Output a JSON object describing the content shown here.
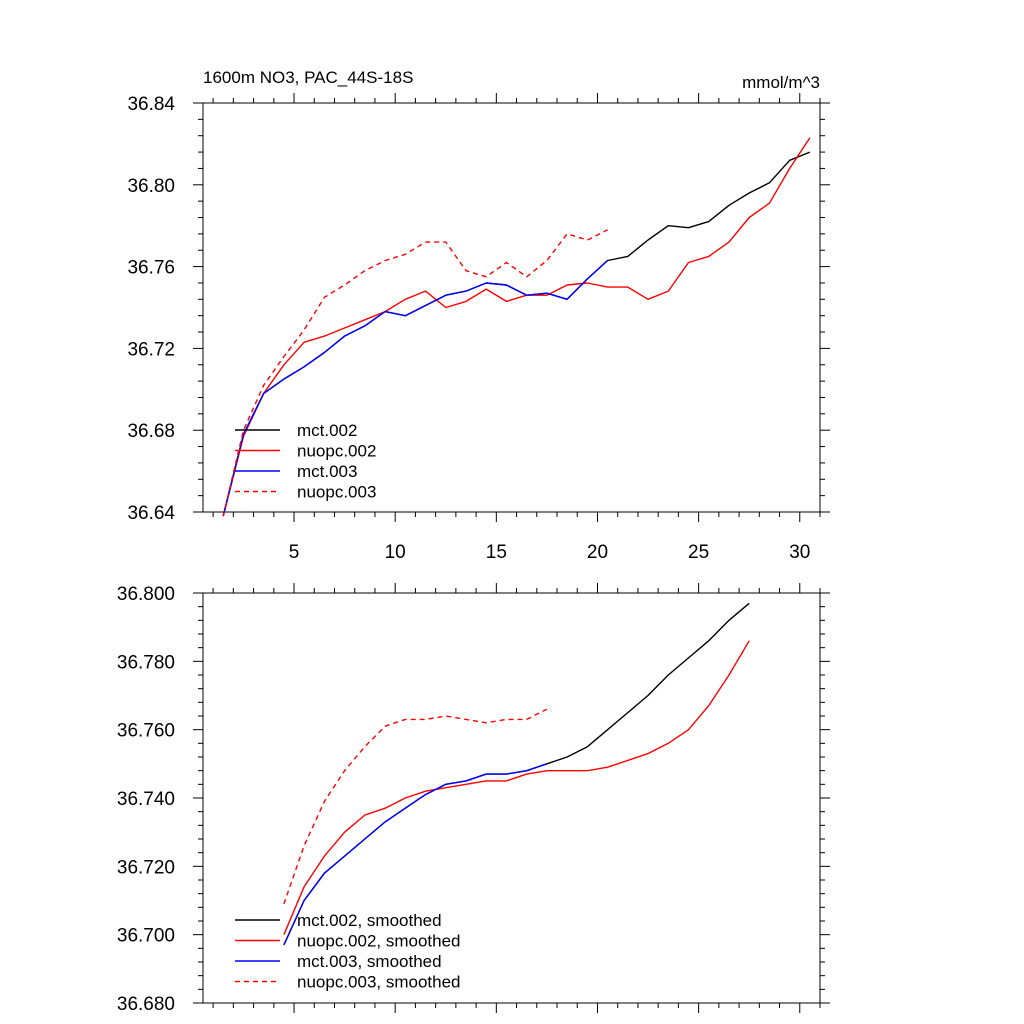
{
  "header": {
    "title": "1600m NO3, PAC_44S-18S",
    "units": "mmol/m^3"
  },
  "chart_data": [
    {
      "type": "line",
      "xlim": [
        0.5,
        31.0
      ],
      "ylim": [
        36.64,
        36.84
      ],
      "xticks": [
        5,
        10,
        15,
        20,
        25,
        30
      ],
      "xtick_labels": [
        "5",
        "10",
        "15",
        "20",
        "25",
        "30"
      ],
      "yticks": [
        36.64,
        36.68,
        36.72,
        36.76,
        36.8,
        36.84
      ],
      "ytick_labels": [
        "36.64",
        "36.68",
        "36.72",
        "36.76",
        "36.80",
        "36.84"
      ],
      "grid": false,
      "legend_position": "bottom-left",
      "series": [
        {
          "name": "mct.002",
          "color": "#000000",
          "dash": "solid",
          "x": [
            1.5,
            2.5,
            3.5,
            4.5,
            5.5,
            6.5,
            7.5,
            8.5,
            9.5,
            10.5,
            11.5,
            12.5,
            13.5,
            14.5,
            15.5,
            16.5,
            17.5,
            18.5,
            19.5,
            20.5,
            21.5,
            22.5,
            23.5,
            24.5,
            25.5,
            26.5,
            27.5,
            28.5,
            29.5,
            30.5
          ],
          "values": [
            36.638,
            36.678,
            36.698,
            36.705,
            36.711,
            36.718,
            36.726,
            36.731,
            36.738,
            36.736,
            36.741,
            36.746,
            36.748,
            36.752,
            36.751,
            36.746,
            36.747,
            36.744,
            36.754,
            36.763,
            36.765,
            36.773,
            36.78,
            36.779,
            36.782,
            36.79,
            36.796,
            36.801,
            36.812,
            36.816
          ]
        },
        {
          "name": "nuopc.002",
          "color": "#ff0000",
          "dash": "solid",
          "x": [
            1.5,
            2.5,
            3.5,
            4.5,
            5.5,
            6.5,
            7.5,
            8.5,
            9.5,
            10.5,
            11.5,
            12.5,
            13.5,
            14.5,
            15.5,
            16.5,
            17.5,
            18.5,
            19.5,
            20.5,
            21.5,
            22.5,
            23.5,
            24.5,
            25.5,
            26.5,
            27.5,
            28.5,
            29.5,
            30.5
          ],
          "values": [
            36.638,
            36.677,
            36.698,
            36.712,
            36.723,
            36.726,
            36.73,
            36.734,
            36.738,
            36.744,
            36.748,
            36.74,
            36.743,
            36.749,
            36.743,
            36.746,
            36.746,
            36.751,
            36.752,
            36.75,
            36.75,
            36.744,
            36.748,
            36.762,
            36.765,
            36.772,
            36.784,
            36.791,
            36.808,
            36.823
          ]
        },
        {
          "name": "mct.003",
          "color": "#0000ff",
          "dash": "solid",
          "x": [
            1.5,
            2.5,
            3.5,
            4.5,
            5.5,
            6.5,
            7.5,
            8.5,
            9.5,
            10.5,
            11.5,
            12.5,
            13.5,
            14.5,
            15.5,
            16.5,
            17.5,
            18.5,
            19.5,
            20.5
          ],
          "values": [
            36.638,
            36.678,
            36.698,
            36.705,
            36.711,
            36.718,
            36.726,
            36.731,
            36.738,
            36.736,
            36.741,
            36.746,
            36.748,
            36.752,
            36.751,
            36.746,
            36.747,
            36.744,
            36.754,
            36.763
          ]
        },
        {
          "name": "nuopc.003",
          "color": "#ff0000",
          "dash": "dashed",
          "x": [
            1.5,
            2.5,
            3.5,
            4.5,
            5.5,
            6.5,
            7.5,
            8.5,
            9.5,
            10.5,
            11.5,
            12.5,
            13.5,
            14.5,
            15.5,
            16.5,
            17.5,
            18.5,
            19.5,
            20.5
          ],
          "values": [
            36.638,
            36.68,
            36.702,
            36.716,
            36.729,
            36.745,
            36.751,
            36.758,
            36.763,
            36.766,
            36.772,
            36.772,
            36.758,
            36.755,
            36.762,
            36.755,
            36.763,
            36.776,
            36.773,
            36.778
          ]
        }
      ]
    },
    {
      "type": "line",
      "xlim": [
        0.5,
        31.0
      ],
      "ylim": [
        36.68,
        36.8
      ],
      "xticks": [
        5,
        10,
        15,
        20,
        25,
        30
      ],
      "xtick_labels": [],
      "yticks": [
        36.68,
        36.7,
        36.72,
        36.74,
        36.76,
        36.78,
        36.8
      ],
      "ytick_labels": [
        "36.680",
        "36.700",
        "36.720",
        "36.740",
        "36.760",
        "36.780",
        "36.800"
      ],
      "grid": false,
      "legend_position": "bottom-left",
      "series": [
        {
          "name": "mct.002, smoothed",
          "color": "#000000",
          "dash": "solid",
          "x": [
            4.5,
            5.5,
            6.5,
            7.5,
            8.5,
            9.5,
            10.5,
            11.5,
            12.5,
            13.5,
            14.5,
            15.5,
            16.5,
            17.5,
            18.5,
            19.5,
            20.5,
            21.5,
            22.5,
            23.5,
            24.5,
            25.5,
            26.5,
            27.5
          ],
          "values": [
            36.697,
            36.71,
            36.718,
            36.723,
            36.728,
            36.733,
            36.737,
            36.741,
            36.744,
            36.745,
            36.747,
            36.747,
            36.748,
            36.75,
            36.752,
            36.755,
            36.76,
            36.765,
            36.77,
            36.776,
            36.781,
            36.786,
            36.792,
            36.797
          ]
        },
        {
          "name": "nuopc.002, smoothed",
          "color": "#ff0000",
          "dash": "solid",
          "x": [
            4.5,
            5.5,
            6.5,
            7.5,
            8.5,
            9.5,
            10.5,
            11.5,
            12.5,
            13.5,
            14.5,
            15.5,
            16.5,
            17.5,
            18.5,
            19.5,
            20.5,
            21.5,
            22.5,
            23.5,
            24.5,
            25.5,
            26.5,
            27.5
          ],
          "values": [
            36.7,
            36.714,
            36.723,
            36.73,
            36.735,
            36.737,
            36.74,
            36.742,
            36.743,
            36.744,
            36.745,
            36.745,
            36.747,
            36.748,
            36.748,
            36.748,
            36.749,
            36.751,
            36.753,
            36.756,
            36.76,
            36.767,
            36.776,
            36.786
          ]
        },
        {
          "name": "mct.003, smoothed",
          "color": "#0000ff",
          "dash": "solid",
          "x": [
            4.5,
            5.5,
            6.5,
            7.5,
            8.5,
            9.5,
            10.5,
            11.5,
            12.5,
            13.5,
            14.5,
            15.5,
            16.5,
            17.5
          ],
          "values": [
            36.697,
            36.71,
            36.718,
            36.723,
            36.728,
            36.733,
            36.737,
            36.741,
            36.744,
            36.745,
            36.747,
            36.747,
            36.748,
            36.75
          ]
        },
        {
          "name": "nuopc.003, smoothed",
          "color": "#ff0000",
          "dash": "dashed",
          "x": [
            4.5,
            5.5,
            6.5,
            7.5,
            8.5,
            9.5,
            10.5,
            11.5,
            12.5,
            13.5,
            14.5,
            15.5,
            16.5,
            17.5
          ],
          "values": [
            36.709,
            36.726,
            36.739,
            36.748,
            36.755,
            36.761,
            36.763,
            36.763,
            36.764,
            36.763,
            36.762,
            36.763,
            36.763,
            36.766
          ]
        }
      ]
    }
  ]
}
